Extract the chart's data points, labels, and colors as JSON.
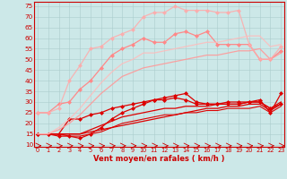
{
  "x": [
    0,
    1,
    2,
    3,
    4,
    5,
    6,
    7,
    8,
    9,
    10,
    11,
    12,
    13,
    14,
    15,
    16,
    17,
    18,
    19,
    20,
    21,
    22,
    23
  ],
  "background_color": "#cce8e8",
  "grid_color": "#aacccc",
  "xlabel": "Vent moyen/en rafales ( km/h )",
  "xlabel_color": "#cc0000",
  "lines": [
    {
      "y": [
        15,
        15,
        14,
        14,
        13,
        15,
        18,
        22,
        25,
        27,
        29,
        31,
        32,
        33,
        34,
        30,
        29,
        29,
        30,
        30,
        30,
        31,
        25,
        34
      ],
      "color": "#dd0000",
      "marker": "D",
      "markersize": 2,
      "linewidth": 0.9,
      "alpha": 1.0
    },
    {
      "y": [
        15,
        15,
        15,
        15,
        15,
        16,
        17,
        18,
        19,
        20,
        21,
        22,
        23,
        24,
        25,
        26,
        27,
        27,
        28,
        28,
        29,
        29,
        26,
        29
      ],
      "color": "#dd0000",
      "marker": null,
      "markersize": 0,
      "linewidth": 0.9,
      "alpha": 1.0
    },
    {
      "y": [
        15,
        15,
        15,
        15,
        15,
        17,
        19,
        21,
        23,
        24,
        25,
        26,
        27,
        27,
        28,
        28,
        28,
        29,
        29,
        29,
        30,
        30,
        27,
        30
      ],
      "color": "#dd0000",
      "marker": null,
      "markersize": 0,
      "linewidth": 0.9,
      "alpha": 1.0
    },
    {
      "y": [
        15,
        15,
        15,
        22,
        22,
        24,
        25,
        27,
        28,
        29,
        30,
        31,
        31,
        32,
        31,
        29,
        29,
        29,
        29,
        29,
        30,
        30,
        27,
        29
      ],
      "color": "#dd0000",
      "marker": "D",
      "markersize": 2,
      "linewidth": 0.9,
      "alpha": 1.0
    },
    {
      "y": [
        15,
        15,
        15,
        14,
        14,
        15,
        16,
        18,
        20,
        21,
        22,
        23,
        24,
        24,
        25,
        25,
        26,
        26,
        27,
        27,
        27,
        28,
        25,
        28
      ],
      "color": "#dd0000",
      "marker": null,
      "markersize": 0,
      "linewidth": 0.8,
      "alpha": 1.0
    },
    {
      "y": [
        25,
        25,
        29,
        30,
        36,
        40,
        46,
        52,
        55,
        57,
        60,
        58,
        58,
        62,
        63,
        61,
        63,
        57,
        57,
        57,
        57,
        50,
        50,
        54
      ],
      "color": "#ff8888",
      "marker": "D",
      "markersize": 2,
      "linewidth": 0.9,
      "alpha": 1.0
    },
    {
      "y": [
        15,
        15,
        17,
        20,
        24,
        29,
        34,
        38,
        42,
        44,
        46,
        47,
        48,
        49,
        50,
        51,
        52,
        52,
        53,
        54,
        54,
        55,
        50,
        53
      ],
      "color": "#ff9999",
      "marker": null,
      "markersize": 0,
      "linewidth": 0.9,
      "alpha": 0.9
    },
    {
      "y": [
        25,
        25,
        27,
        40,
        47,
        55,
        56,
        60,
        62,
        64,
        70,
        72,
        72,
        75,
        73,
        73,
        73,
        72,
        72,
        73,
        57,
        50,
        50,
        56
      ],
      "color": "#ffaaaa",
      "marker": "D",
      "markersize": 2,
      "linewidth": 0.9,
      "alpha": 0.85
    },
    {
      "y": [
        15,
        15,
        18,
        22,
        27,
        33,
        39,
        44,
        48,
        50,
        53,
        53,
        54,
        55,
        56,
        57,
        58,
        58,
        59,
        60,
        61,
        61,
        56,
        57
      ],
      "color": "#ffbbbb",
      "marker": null,
      "markersize": 0,
      "linewidth": 0.9,
      "alpha": 0.85
    }
  ],
  "arrows": {
    "y": 9.5,
    "color": "#cc0000",
    "lw": 0.6
  },
  "ylim": [
    9,
    77
  ],
  "yticks": [
    10,
    15,
    20,
    25,
    30,
    35,
    40,
    45,
    50,
    55,
    60,
    65,
    70,
    75
  ],
  "xlim": [
    -0.3,
    23.3
  ],
  "xticks": [
    0,
    1,
    2,
    3,
    4,
    5,
    6,
    7,
    8,
    9,
    10,
    11,
    12,
    13,
    14,
    15,
    16,
    17,
    18,
    19,
    20,
    21,
    22,
    23
  ]
}
